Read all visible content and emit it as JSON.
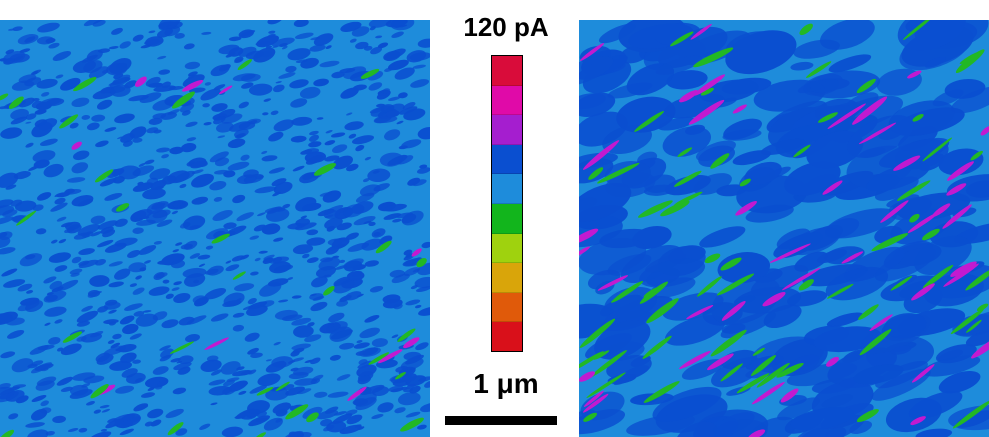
{
  "colorbar": {
    "title": "120 pA",
    "colors": [
      "#d90c3a",
      "#e00aa8",
      "#a51ecf",
      "#0a4fd0",
      "#1e8cdb",
      "#12b51c",
      "#9fd20e",
      "#d9a50a",
      "#e05a0a",
      "#d9101a"
    ]
  },
  "scalebar": {
    "label": "1 μm"
  },
  "palette": {
    "base": "#1e8cdb",
    "dark": "#0a4fd0",
    "green": "#22b824",
    "magenta": "#c21ad0",
    "yellow": "#c8e010"
  }
}
